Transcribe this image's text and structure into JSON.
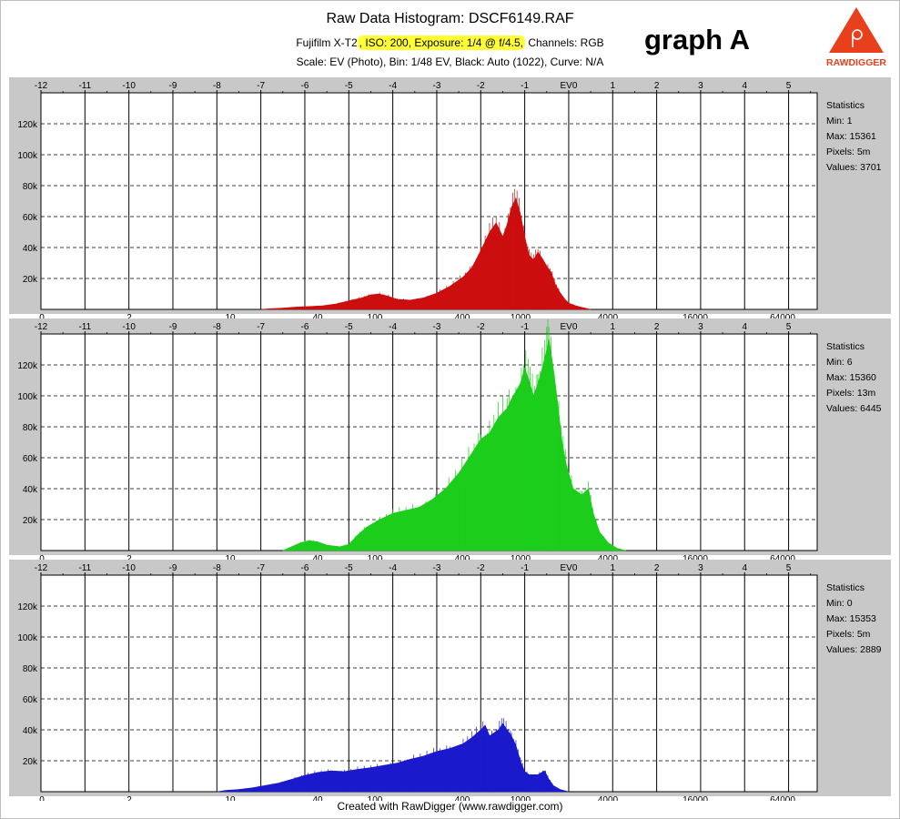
{
  "header": {
    "title": "Raw Data Histogram: DSCF6149.RAF",
    "camera": "Fujifilm X-T2",
    "iso_label": "ISO: 200",
    "exposure_label": "Exposure: 1/4 @ f/4.5",
    "channels_label": "Channels: RGB",
    "settings_line": "Scale: EV (Photo), Bin: 1/48 EV, Black: Auto (1022), Curve: N/A"
  },
  "graph_label": "graph A",
  "logo": {
    "text": "RAWDIGGER",
    "icon": "rawdigger-logo-icon",
    "color": "#e8401c"
  },
  "footer": "Created with RawDigger (www.rawdigger.com)",
  "chart_data": [
    {
      "type": "area",
      "channel": "red",
      "color": "#cc0e0e",
      "ev_ticks": [
        "-12",
        "-11",
        "-10",
        "-9",
        "-8",
        "-7",
        "-6",
        "-5",
        "-4",
        "-3",
        "-2",
        "-1",
        "EV0",
        "1",
        "2",
        "3",
        "4",
        "5"
      ],
      "value_ticks": [
        "0",
        "2",
        "10",
        "40",
        "100",
        "400",
        "1000",
        "4000",
        "16000",
        "64000"
      ],
      "y_ticks": [
        "20k",
        "40k",
        "60k",
        "80k",
        "100k",
        "120k"
      ],
      "ylim": [
        0,
        140000
      ],
      "stats": {
        "title": "Statistics",
        "min": "Min: 1",
        "max": "Max: 15361",
        "pixels": "Pixels: 5m",
        "values": "Values: 3701"
      },
      "points": [
        [
          -7,
          0
        ],
        [
          -6.8,
          400
        ],
        [
          -6.5,
          900
        ],
        [
          -6.2,
          1500
        ],
        [
          -5.9,
          1900
        ],
        [
          -5.6,
          2300
        ],
        [
          -5.3,
          3500
        ],
        [
          -5.0,
          5500
        ],
        [
          -4.7,
          7500
        ],
        [
          -4.5,
          9500
        ],
        [
          -4.3,
          10000
        ],
        [
          -4.1,
          8500
        ],
        [
          -3.9,
          6500
        ],
        [
          -3.6,
          6000
        ],
        [
          -3.3,
          7500
        ],
        [
          -3.0,
          10500
        ],
        [
          -2.7,
          15000
        ],
        [
          -2.4,
          21000
        ],
        [
          -2.2,
          27000
        ],
        [
          -2.0,
          38000
        ],
        [
          -1.8,
          50000
        ],
        [
          -1.65,
          56000
        ],
        [
          -1.5,
          47000
        ],
        [
          -1.4,
          55000
        ],
        [
          -1.3,
          66000
        ],
        [
          -1.2,
          72000
        ],
        [
          -1.1,
          62000
        ],
        [
          -1.0,
          47000
        ],
        [
          -0.9,
          35000
        ],
        [
          -0.8,
          32000
        ],
        [
          -0.7,
          37000
        ],
        [
          -0.6,
          33000
        ],
        [
          -0.5,
          28000
        ],
        [
          -0.4,
          24000
        ],
        [
          -0.3,
          16000
        ],
        [
          -0.2,
          11000
        ],
        [
          -0.1,
          7000
        ],
        [
          0.0,
          4000
        ],
        [
          0.2,
          2000
        ],
        [
          0.5,
          0
        ]
      ]
    },
    {
      "type": "area",
      "channel": "green",
      "color": "#1ccd1c",
      "ev_ticks": [
        "-12",
        "-11",
        "-10",
        "-9",
        "-8",
        "-7",
        "-6",
        "-5",
        "-4",
        "-3",
        "-2",
        "-1",
        "EV0",
        "1",
        "2",
        "3",
        "4",
        "5"
      ],
      "value_ticks": [
        "0",
        "2",
        "10",
        "40",
        "100",
        "400",
        "1000",
        "4000",
        "16000",
        "64000"
      ],
      "y_ticks": [
        "20k",
        "40k",
        "60k",
        "80k",
        "100k",
        "120k"
      ],
      "ylim": [
        0,
        140000
      ],
      "stats": {
        "title": "Statistics",
        "min": "Min: 6",
        "max": "Max: 15360",
        "pixels": "Pixels: 13m",
        "values": "Values: 6445"
      },
      "points": [
        [
          -6.5,
          0
        ],
        [
          -6.3,
          2500
        ],
        [
          -6.1,
          5000
        ],
        [
          -5.9,
          6500
        ],
        [
          -5.7,
          5500
        ],
        [
          -5.5,
          3500
        ],
        [
          -5.2,
          2500
        ],
        [
          -5.0,
          4000
        ],
        [
          -4.8,
          10000
        ],
        [
          -4.6,
          15000
        ],
        [
          -4.3,
          20000
        ],
        [
          -4.0,
          24000
        ],
        [
          -3.7,
          26000
        ],
        [
          -3.4,
          28000
        ],
        [
          -3.1,
          33000
        ],
        [
          -2.8,
          40000
        ],
        [
          -2.5,
          50000
        ],
        [
          -2.2,
          63000
        ],
        [
          -2.0,
          72000
        ],
        [
          -1.8,
          76000
        ],
        [
          -1.6,
          86000
        ],
        [
          -1.4,
          92000
        ],
        [
          -1.3,
          98000
        ],
        [
          -1.1,
          108000
        ],
        [
          -1.0,
          118000
        ],
        [
          -0.9,
          110000
        ],
        [
          -0.8,
          100000
        ],
        [
          -0.7,
          108000
        ],
        [
          -0.6,
          118000
        ],
        [
          -0.5,
          130000
        ],
        [
          -0.45,
          137000
        ],
        [
          -0.35,
          118000
        ],
        [
          -0.25,
          95000
        ],
        [
          -0.15,
          70000
        ],
        [
          -0.05,
          55000
        ],
        [
          0.1,
          40000
        ],
        [
          0.3,
          36000
        ],
        [
          0.45,
          40000
        ],
        [
          0.55,
          25000
        ],
        [
          0.7,
          12000
        ],
        [
          0.9,
          5000
        ],
        [
          1.1,
          1500
        ],
        [
          1.3,
          0
        ]
      ]
    },
    {
      "type": "area",
      "channel": "blue",
      "color": "#1a1acc",
      "ev_ticks": [
        "-12",
        "-11",
        "-10",
        "-9",
        "-8",
        "-7",
        "-6",
        "-5",
        "-4",
        "-3",
        "-2",
        "-1",
        "EV0",
        "1",
        "2",
        "3",
        "4",
        "5"
      ],
      "value_ticks": [
        "0",
        "2",
        "10",
        "40",
        "100",
        "400",
        "1000",
        "4000",
        "16000",
        "64000"
      ],
      "y_ticks": [
        "20k",
        "40k",
        "60k",
        "80k",
        "100k",
        "120k"
      ],
      "ylim": [
        0,
        140000
      ],
      "stats": {
        "title": "Statistics",
        "min": "Min: 0",
        "max": "Max: 15353",
        "pixels": "Pixels: 5m",
        "values": "Values: 2889"
      },
      "points": [
        [
          -8.0,
          0
        ],
        [
          -7.8,
          800
        ],
        [
          -7.5,
          1500
        ],
        [
          -7.2,
          2500
        ],
        [
          -6.9,
          4000
        ],
        [
          -6.6,
          5500
        ],
        [
          -6.3,
          8000
        ],
        [
          -6.0,
          10500
        ],
        [
          -5.7,
          12500
        ],
        [
          -5.4,
          13500
        ],
        [
          -5.1,
          13000
        ],
        [
          -4.8,
          14500
        ],
        [
          -4.5,
          15500
        ],
        [
          -4.2,
          17000
        ],
        [
          -3.9,
          18500
        ],
        [
          -3.6,
          21000
        ],
        [
          -3.3,
          23000
        ],
        [
          -3.0,
          26000
        ],
        [
          -2.7,
          28000
        ],
        [
          -2.4,
          31000
        ],
        [
          -2.2,
          35000
        ],
        [
          -2.0,
          40000
        ],
        [
          -1.9,
          43000
        ],
        [
          -1.8,
          36000
        ],
        [
          -1.6,
          40000
        ],
        [
          -1.5,
          44000
        ],
        [
          -1.4,
          40000
        ],
        [
          -1.3,
          36000
        ],
        [
          -1.2,
          30000
        ],
        [
          -1.1,
          20000
        ],
        [
          -1.0,
          13000
        ],
        [
          -0.9,
          11000
        ],
        [
          -0.7,
          11000
        ],
        [
          -0.55,
          13500
        ],
        [
          -0.45,
          8000
        ],
        [
          -0.35,
          4000
        ],
        [
          -0.2,
          1500
        ],
        [
          0.0,
          0
        ]
      ]
    }
  ]
}
